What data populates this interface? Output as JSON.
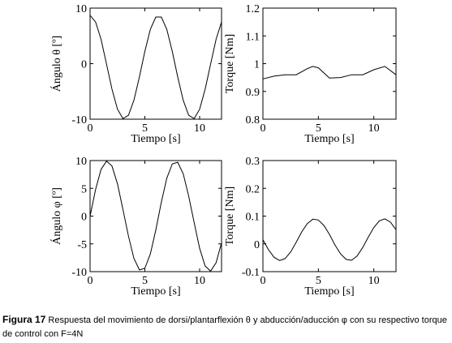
{
  "chart_data": [
    {
      "type": "line",
      "y_label": "Ángulo θ [º]",
      "x_label": "Tiempo [s]",
      "xlim": [
        0,
        12
      ],
      "xticks": [
        0,
        5,
        10
      ],
      "ylim": [
        -10,
        10
      ],
      "yticks": [
        -10,
        0,
        10
      ],
      "color": "#000000",
      "x": [
        0,
        0.5,
        1,
        1.5,
        2,
        2.5,
        3,
        3.5,
        4,
        4.5,
        5,
        5.5,
        6,
        6.5,
        7,
        7.5,
        8,
        8.5,
        9,
        9.5,
        10,
        10.5,
        11,
        11.5,
        12
      ],
      "values": [
        8.7,
        7.5,
        4.4,
        -0.1,
        -4.6,
        -8.2,
        -9.9,
        -9.3,
        -6.6,
        -2.4,
        2.2,
        6.2,
        8.4,
        8.4,
        6.2,
        2.2,
        -2.4,
        -6.6,
        -9.3,
        -9.9,
        -8.2,
        -4.6,
        -0.1,
        4.4,
        7.5
      ]
    },
    {
      "type": "line",
      "y_label": "Torque [Nm]",
      "x_label": "Tiempo [s]",
      "xlim": [
        0,
        12
      ],
      "xticks": [
        0,
        5,
        10
      ],
      "ylim": [
        0.8,
        1.2
      ],
      "yticks": [
        0.8,
        0.9,
        1,
        1.1,
        1.2
      ],
      "color": "#000000",
      "x": [
        0,
        1,
        2,
        3,
        4,
        4.5,
        5,
        6,
        7,
        8,
        9,
        10,
        11,
        12
      ],
      "values": [
        0.945,
        0.955,
        0.96,
        0.96,
        0.982,
        0.99,
        0.985,
        0.948,
        0.95,
        0.96,
        0.96,
        0.978,
        0.99,
        0.96
      ]
    },
    {
      "type": "line",
      "y_label": "Ángulo φ [º]",
      "x_label": "Tiempo [s]",
      "xlim": [
        0,
        12
      ],
      "xticks": [
        0,
        5,
        10
      ],
      "ylim": [
        -10,
        10
      ],
      "yticks": [
        -10,
        -5,
        0,
        5,
        10
      ],
      "color": "#000000",
      "x": [
        0,
        0.5,
        1,
        1.5,
        2,
        2.5,
        3,
        3.5,
        4,
        4.5,
        5,
        5.5,
        6,
        6.5,
        7,
        7.5,
        8,
        8.5,
        9,
        9.5,
        10,
        10.5,
        11,
        11.5,
        12
      ],
      "values": [
        0,
        4.8,
        8.4,
        9.9,
        9.0,
        5.8,
        1.2,
        -3.6,
        -7.6,
        -9.7,
        -9.4,
        -6.8,
        -2.5,
        2.5,
        6.8,
        9.4,
        9.7,
        7.6,
        3.6,
        -1.2,
        -5.8,
        -9.0,
        -9.9,
        -8.4,
        -4.8
      ]
    },
    {
      "type": "line",
      "y_label": "Torque  [Nm]",
      "x_label": "Tiempo [s]",
      "xlim": [
        0,
        12
      ],
      "xticks": [
        0,
        5,
        10
      ],
      "ylim": [
        -0.1,
        0.3
      ],
      "yticks": [
        -0.1,
        0,
        0.1,
        0.2,
        0.3
      ],
      "color": "#000000",
      "x": [
        0,
        0.5,
        1,
        1.5,
        2,
        2.5,
        3,
        3.5,
        4,
        4.5,
        5,
        5.5,
        6,
        6.5,
        7,
        7.5,
        8,
        8.5,
        9,
        9.5,
        10,
        10.5,
        11,
        11.5,
        12
      ],
      "values": [
        0.015,
        -0.021,
        -0.048,
        -0.06,
        -0.053,
        -0.029,
        0.006,
        0.043,
        0.073,
        0.089,
        0.086,
        0.066,
        0.034,
        -0.004,
        -0.036,
        -0.056,
        -0.059,
        -0.043,
        -0.013,
        0.024,
        0.059,
        0.083,
        0.09,
        0.078,
        0.051
      ]
    }
  ],
  "caption": {
    "label": "Figura 17",
    "text": "Respuesta del movimiento de dorsi/plantarflexión θ y abducción/aducción φ con su respectivo torque de control con F=4N"
  }
}
